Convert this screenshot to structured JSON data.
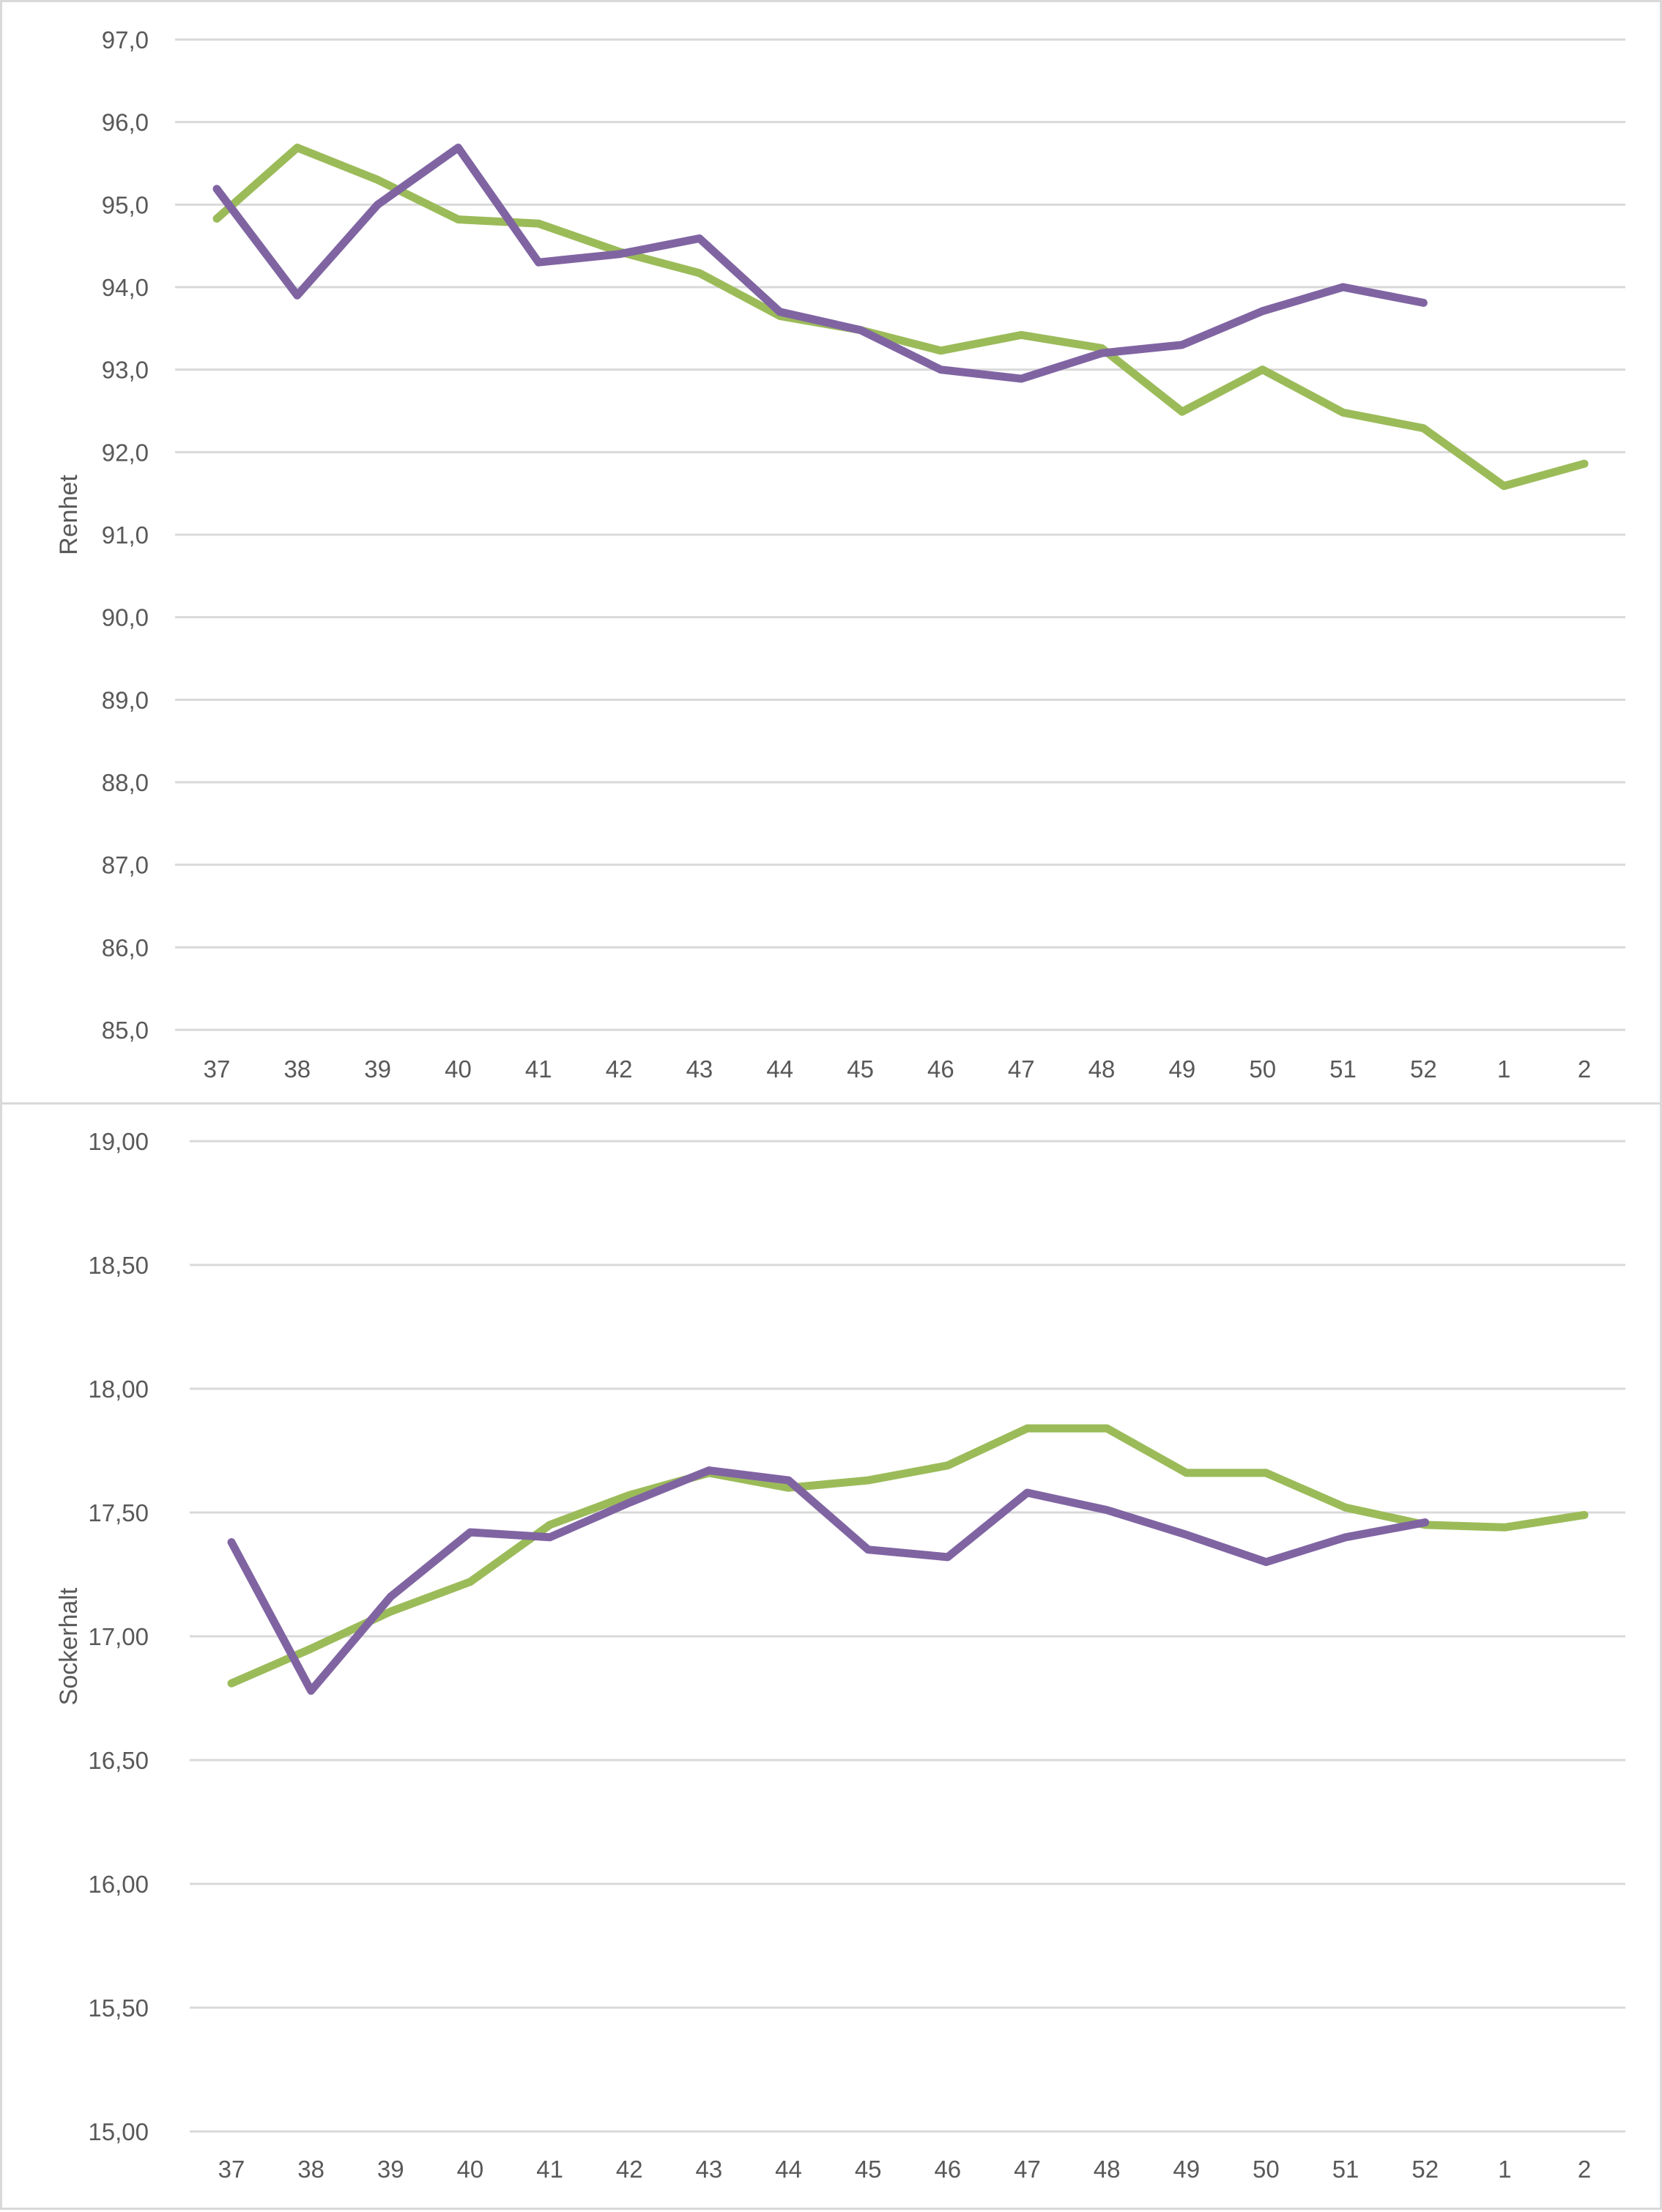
{
  "colors": {
    "series_a": "#9bbb59",
    "series_b": "#8064a2",
    "grid": "#d9d9d9",
    "text": "#595959"
  },
  "chart_data": [
    {
      "type": "line",
      "title": "",
      "xlabel": "",
      "ylabel": "Renhet",
      "ylim": [
        85,
        97
      ],
      "yticks": [
        "85,0",
        "86,0",
        "87,0",
        "88,0",
        "89,0",
        "90,0",
        "91,0",
        "92,0",
        "93,0",
        "94,0",
        "95,0",
        "96,0",
        "97,0"
      ],
      "ytick_values": [
        85,
        86,
        87,
        88,
        89,
        90,
        91,
        92,
        93,
        94,
        95,
        96,
        97
      ],
      "categories": [
        "37",
        "38",
        "39",
        "40",
        "41",
        "42",
        "43",
        "44",
        "45",
        "46",
        "47",
        "48",
        "49",
        "50",
        "51",
        "52",
        "1",
        "2"
      ],
      "grid": true,
      "legend": "none",
      "series": [
        {
          "name": "Green series",
          "color": "#9bbb59",
          "values": [
            94.83,
            95.69,
            95.3,
            94.82,
            94.77,
            94.43,
            94.17,
            93.65,
            93.48,
            93.23,
            93.42,
            93.26,
            92.49,
            93.0,
            92.48,
            92.29,
            91.59,
            91.86
          ]
        },
        {
          "name": "Purple series",
          "color": "#8064a2",
          "values": [
            95.19,
            93.9,
            95.0,
            95.69,
            94.3,
            94.4,
            94.59,
            93.7,
            93.48,
            93.0,
            92.89,
            93.2,
            93.3,
            93.71,
            94.0,
            93.81,
            null,
            null
          ]
        }
      ]
    },
    {
      "type": "line",
      "title": "",
      "xlabel": "",
      "ylabel": "Sockerhalt",
      "ylim": [
        15,
        19
      ],
      "yticks": [
        "15,00",
        "15,50",
        "16,00",
        "16,50",
        "17,00",
        "17,50",
        "18,00",
        "18,50",
        "19,00"
      ],
      "ytick_values": [
        15,
        15.5,
        16,
        16.5,
        17,
        17.5,
        18,
        18.5,
        19
      ],
      "categories": [
        "37",
        "38",
        "39",
        "40",
        "41",
        "42",
        "43",
        "44",
        "45",
        "46",
        "47",
        "48",
        "49",
        "50",
        "51",
        "52",
        "1",
        "2"
      ],
      "grid": true,
      "legend": "none",
      "series": [
        {
          "name": "Green series",
          "color": "#9bbb59",
          "values": [
            16.81,
            16.95,
            17.1,
            17.22,
            17.45,
            17.57,
            17.66,
            17.6,
            17.63,
            17.69,
            17.84,
            17.84,
            17.66,
            17.66,
            17.52,
            17.45,
            17.44,
            17.49
          ]
        },
        {
          "name": "Purple series",
          "color": "#8064a2",
          "values": [
            17.38,
            16.78,
            17.16,
            17.42,
            17.4,
            17.54,
            17.67,
            17.63,
            17.35,
            17.32,
            17.58,
            17.51,
            17.41,
            17.3,
            17.4,
            17.46,
            null,
            null
          ]
        }
      ]
    }
  ]
}
